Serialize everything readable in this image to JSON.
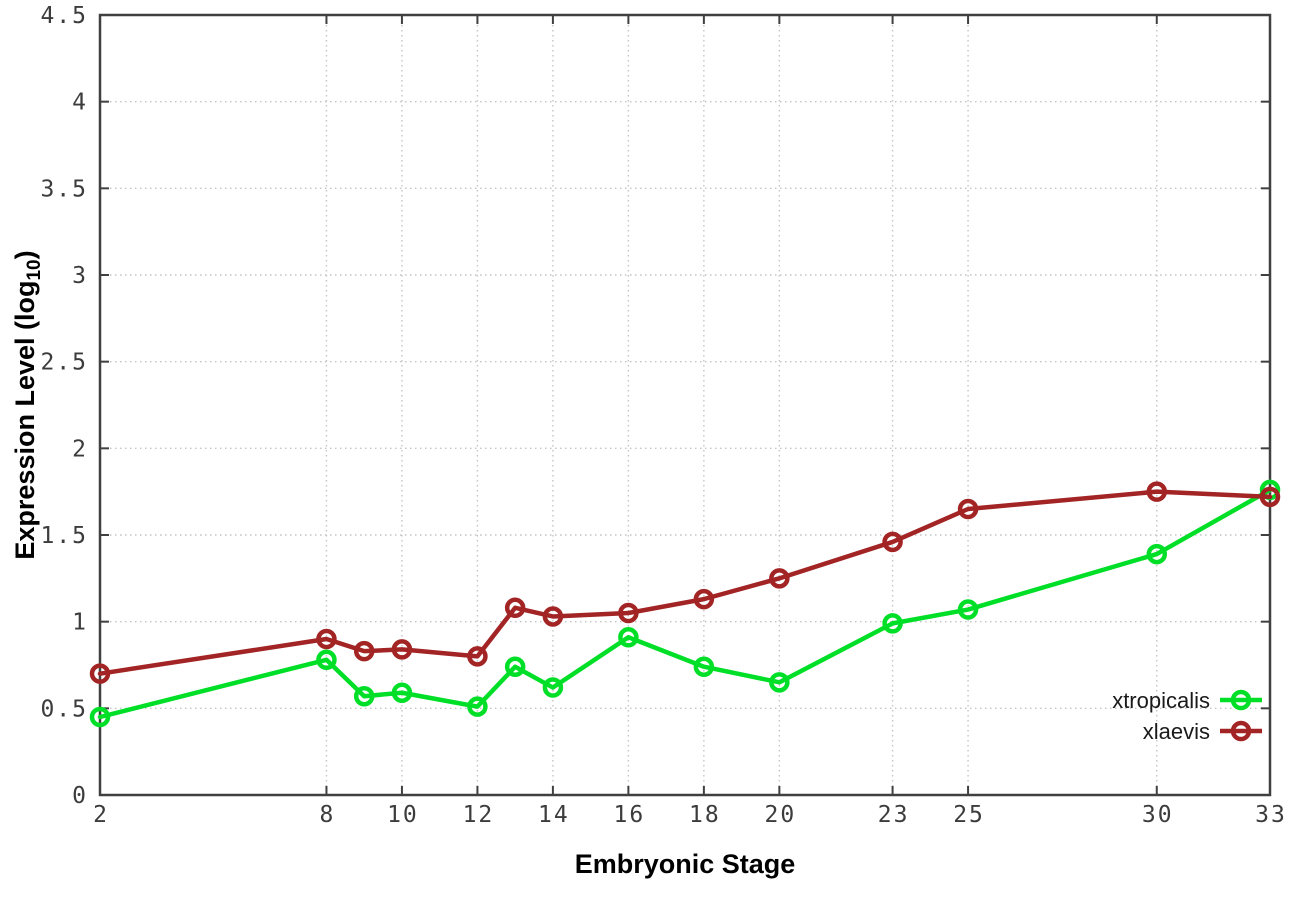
{
  "page": {
    "background": "#ffffff"
  },
  "style": {
    "frame_color": "#404040",
    "grid_color": "#c4c4c4",
    "tick_label_color": "#3c3c3c",
    "title_color": "#000000",
    "legend_text_color": "#1a1a1a"
  },
  "chart_data": {
    "type": "line",
    "title": "",
    "xlabel": "Embryonic Stage",
    "ylabel": "Expression Level (log10)",
    "ylabel_rich": {
      "pre": "Expression Level (log",
      "sub": "10",
      "post": ")"
    },
    "x": [
      2,
      8,
      9,
      10,
      12,
      13,
      14,
      16,
      18,
      20,
      23,
      25,
      30,
      33
    ],
    "xticks": [
      2,
      8,
      10,
      12,
      14,
      16,
      18,
      20,
      23,
      25,
      30,
      33
    ],
    "yticks": [
      0,
      0.5,
      1,
      1.5,
      2,
      2.5,
      3,
      3.5,
      4,
      4.5
    ],
    "xlim": [
      2,
      33
    ],
    "ylim": [
      0,
      4.5
    ],
    "grid": true,
    "legend_position": "inside-bottom-right",
    "series": [
      {
        "name": "xtropicalis",
        "color": "#00df28",
        "marker": "open-circle",
        "values": [
          0.45,
          0.78,
          0.57,
          0.59,
          0.51,
          0.74,
          0.62,
          0.91,
          0.74,
          0.65,
          0.99,
          1.07,
          1.39,
          1.76
        ]
      },
      {
        "name": "xlaevis",
        "color": "#a32424",
        "marker": "open-circle",
        "values": [
          0.7,
          0.9,
          0.83,
          0.84,
          0.8,
          1.08,
          1.03,
          1.05,
          1.13,
          1.25,
          1.46,
          1.65,
          1.75,
          1.72
        ]
      }
    ]
  }
}
